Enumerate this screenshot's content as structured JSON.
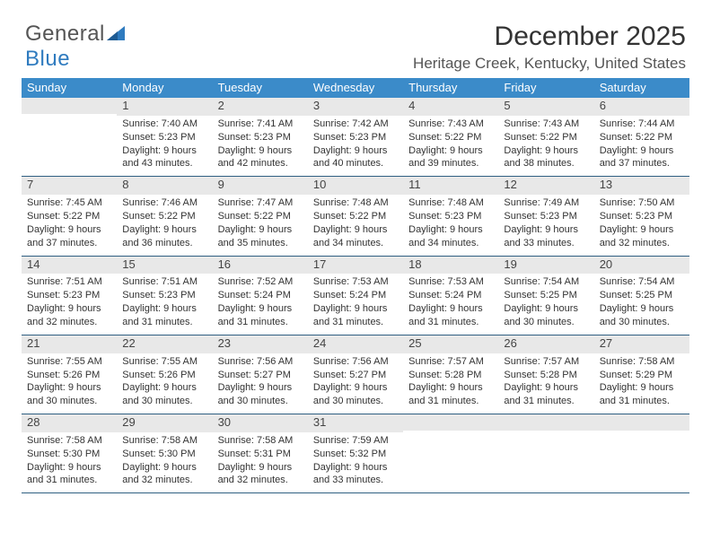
{
  "logo": {
    "part1": "General",
    "part2": "Blue"
  },
  "title": "December 2025",
  "location": "Heritage Creek, Kentucky, United States",
  "colors": {
    "header_bg": "#3b8bc9",
    "header_text": "#ffffff",
    "daynum_bg": "#e8e8e8",
    "rule": "#2f5f82",
    "body_text": "#333333",
    "logo_gray": "#555555",
    "logo_blue": "#2f7bbf"
  },
  "days_of_week": [
    "Sunday",
    "Monday",
    "Tuesday",
    "Wednesday",
    "Thursday",
    "Friday",
    "Saturday"
  ],
  "weeks": [
    [
      {
        "n": "",
        "sunrise": "",
        "sunset": "",
        "day1": "",
        "day2": ""
      },
      {
        "n": "1",
        "sunrise": "Sunrise: 7:40 AM",
        "sunset": "Sunset: 5:23 PM",
        "day1": "Daylight: 9 hours",
        "day2": "and 43 minutes."
      },
      {
        "n": "2",
        "sunrise": "Sunrise: 7:41 AM",
        "sunset": "Sunset: 5:23 PM",
        "day1": "Daylight: 9 hours",
        "day2": "and 42 minutes."
      },
      {
        "n": "3",
        "sunrise": "Sunrise: 7:42 AM",
        "sunset": "Sunset: 5:23 PM",
        "day1": "Daylight: 9 hours",
        "day2": "and 40 minutes."
      },
      {
        "n": "4",
        "sunrise": "Sunrise: 7:43 AM",
        "sunset": "Sunset: 5:22 PM",
        "day1": "Daylight: 9 hours",
        "day2": "and 39 minutes."
      },
      {
        "n": "5",
        "sunrise": "Sunrise: 7:43 AM",
        "sunset": "Sunset: 5:22 PM",
        "day1": "Daylight: 9 hours",
        "day2": "and 38 minutes."
      },
      {
        "n": "6",
        "sunrise": "Sunrise: 7:44 AM",
        "sunset": "Sunset: 5:22 PM",
        "day1": "Daylight: 9 hours",
        "day2": "and 37 minutes."
      }
    ],
    [
      {
        "n": "7",
        "sunrise": "Sunrise: 7:45 AM",
        "sunset": "Sunset: 5:22 PM",
        "day1": "Daylight: 9 hours",
        "day2": "and 37 minutes."
      },
      {
        "n": "8",
        "sunrise": "Sunrise: 7:46 AM",
        "sunset": "Sunset: 5:22 PM",
        "day1": "Daylight: 9 hours",
        "day2": "and 36 minutes."
      },
      {
        "n": "9",
        "sunrise": "Sunrise: 7:47 AM",
        "sunset": "Sunset: 5:22 PM",
        "day1": "Daylight: 9 hours",
        "day2": "and 35 minutes."
      },
      {
        "n": "10",
        "sunrise": "Sunrise: 7:48 AM",
        "sunset": "Sunset: 5:22 PM",
        "day1": "Daylight: 9 hours",
        "day2": "and 34 minutes."
      },
      {
        "n": "11",
        "sunrise": "Sunrise: 7:48 AM",
        "sunset": "Sunset: 5:23 PM",
        "day1": "Daylight: 9 hours",
        "day2": "and 34 minutes."
      },
      {
        "n": "12",
        "sunrise": "Sunrise: 7:49 AM",
        "sunset": "Sunset: 5:23 PM",
        "day1": "Daylight: 9 hours",
        "day2": "and 33 minutes."
      },
      {
        "n": "13",
        "sunrise": "Sunrise: 7:50 AM",
        "sunset": "Sunset: 5:23 PM",
        "day1": "Daylight: 9 hours",
        "day2": "and 32 minutes."
      }
    ],
    [
      {
        "n": "14",
        "sunrise": "Sunrise: 7:51 AM",
        "sunset": "Sunset: 5:23 PM",
        "day1": "Daylight: 9 hours",
        "day2": "and 32 minutes."
      },
      {
        "n": "15",
        "sunrise": "Sunrise: 7:51 AM",
        "sunset": "Sunset: 5:23 PM",
        "day1": "Daylight: 9 hours",
        "day2": "and 31 minutes."
      },
      {
        "n": "16",
        "sunrise": "Sunrise: 7:52 AM",
        "sunset": "Sunset: 5:24 PM",
        "day1": "Daylight: 9 hours",
        "day2": "and 31 minutes."
      },
      {
        "n": "17",
        "sunrise": "Sunrise: 7:53 AM",
        "sunset": "Sunset: 5:24 PM",
        "day1": "Daylight: 9 hours",
        "day2": "and 31 minutes."
      },
      {
        "n": "18",
        "sunrise": "Sunrise: 7:53 AM",
        "sunset": "Sunset: 5:24 PM",
        "day1": "Daylight: 9 hours",
        "day2": "and 31 minutes."
      },
      {
        "n": "19",
        "sunrise": "Sunrise: 7:54 AM",
        "sunset": "Sunset: 5:25 PM",
        "day1": "Daylight: 9 hours",
        "day2": "and 30 minutes."
      },
      {
        "n": "20",
        "sunrise": "Sunrise: 7:54 AM",
        "sunset": "Sunset: 5:25 PM",
        "day1": "Daylight: 9 hours",
        "day2": "and 30 minutes."
      }
    ],
    [
      {
        "n": "21",
        "sunrise": "Sunrise: 7:55 AM",
        "sunset": "Sunset: 5:26 PM",
        "day1": "Daylight: 9 hours",
        "day2": "and 30 minutes."
      },
      {
        "n": "22",
        "sunrise": "Sunrise: 7:55 AM",
        "sunset": "Sunset: 5:26 PM",
        "day1": "Daylight: 9 hours",
        "day2": "and 30 minutes."
      },
      {
        "n": "23",
        "sunrise": "Sunrise: 7:56 AM",
        "sunset": "Sunset: 5:27 PM",
        "day1": "Daylight: 9 hours",
        "day2": "and 30 minutes."
      },
      {
        "n": "24",
        "sunrise": "Sunrise: 7:56 AM",
        "sunset": "Sunset: 5:27 PM",
        "day1": "Daylight: 9 hours",
        "day2": "and 30 minutes."
      },
      {
        "n": "25",
        "sunrise": "Sunrise: 7:57 AM",
        "sunset": "Sunset: 5:28 PM",
        "day1": "Daylight: 9 hours",
        "day2": "and 31 minutes."
      },
      {
        "n": "26",
        "sunrise": "Sunrise: 7:57 AM",
        "sunset": "Sunset: 5:28 PM",
        "day1": "Daylight: 9 hours",
        "day2": "and 31 minutes."
      },
      {
        "n": "27",
        "sunrise": "Sunrise: 7:58 AM",
        "sunset": "Sunset: 5:29 PM",
        "day1": "Daylight: 9 hours",
        "day2": "and 31 minutes."
      }
    ],
    [
      {
        "n": "28",
        "sunrise": "Sunrise: 7:58 AM",
        "sunset": "Sunset: 5:30 PM",
        "day1": "Daylight: 9 hours",
        "day2": "and 31 minutes."
      },
      {
        "n": "29",
        "sunrise": "Sunrise: 7:58 AM",
        "sunset": "Sunset: 5:30 PM",
        "day1": "Daylight: 9 hours",
        "day2": "and 32 minutes."
      },
      {
        "n": "30",
        "sunrise": "Sunrise: 7:58 AM",
        "sunset": "Sunset: 5:31 PM",
        "day1": "Daylight: 9 hours",
        "day2": "and 32 minutes."
      },
      {
        "n": "31",
        "sunrise": "Sunrise: 7:59 AM",
        "sunset": "Sunset: 5:32 PM",
        "day1": "Daylight: 9 hours",
        "day2": "and 33 minutes."
      },
      {
        "n": "",
        "sunrise": "",
        "sunset": "",
        "day1": "",
        "day2": ""
      },
      {
        "n": "",
        "sunrise": "",
        "sunset": "",
        "day1": "",
        "day2": ""
      },
      {
        "n": "",
        "sunrise": "",
        "sunset": "",
        "day1": "",
        "day2": ""
      }
    ]
  ]
}
